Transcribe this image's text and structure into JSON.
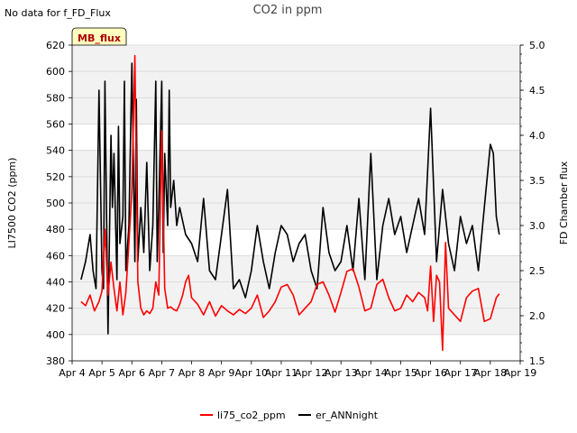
{
  "note": "No data for f_FD_Flux",
  "badge": "MB_flux",
  "chart_data": {
    "type": "line",
    "title": "CO2 in ppm",
    "ylabel": "LI7500 CO2 (ppm)",
    "y2label": "FD Chamber flux",
    "ylim": [
      380,
      620
    ],
    "y2lim": [
      1.5,
      5.0
    ],
    "yticks": [
      380,
      400,
      420,
      440,
      460,
      480,
      500,
      520,
      540,
      560,
      580,
      600,
      620
    ],
    "y2ticks": [
      "1.5",
      "2.0",
      "2.5",
      "3.0",
      "3.5",
      "4.0",
      "4.5",
      "5.0"
    ],
    "xlim": [
      4,
      19
    ],
    "xticks": [
      "Apr 4",
      "Apr 5",
      "Apr 6",
      "Apr 7",
      "Apr 8",
      "Apr 9",
      "Apr 10",
      "Apr 11",
      "Apr 12",
      "Apr 13",
      "Apr 14",
      "Apr 15",
      "Apr 16",
      "Apr 17",
      "Apr 18",
      "Apr 19"
    ],
    "colors": {
      "li75": "#ff0000",
      "er": "#000000"
    },
    "series": [
      {
        "name": "li75_co2_ppm",
        "axis": "left",
        "x": [
          4.3,
          4.45,
          4.6,
          4.75,
          4.9,
          5.0,
          5.1,
          5.2,
          5.3,
          5.4,
          5.5,
          5.6,
          5.7,
          5.8,
          5.9,
          6.0,
          6.1,
          6.2,
          6.3,
          6.4,
          6.5,
          6.6,
          6.7,
          6.8,
          6.9,
          7.0,
          7.1,
          7.2,
          7.3,
          7.4,
          7.5,
          7.6,
          7.7,
          7.8,
          7.9,
          8.0,
          8.2,
          8.4,
          8.6,
          8.8,
          9.0,
          9.2,
          9.4,
          9.6,
          9.8,
          10.0,
          10.2,
          10.4,
          10.6,
          10.8,
          11.0,
          11.2,
          11.4,
          11.6,
          11.8,
          12.0,
          12.2,
          12.4,
          12.6,
          12.8,
          13.0,
          13.2,
          13.4,
          13.6,
          13.8,
          14.0,
          14.2,
          14.4,
          14.6,
          14.8,
          15.0,
          15.2,
          15.4,
          15.6,
          15.8,
          15.9,
          16.0,
          16.1,
          16.2,
          16.3,
          16.4,
          16.5,
          16.6,
          16.8,
          17.0,
          17.2,
          17.4,
          17.6,
          17.8,
          18.0,
          18.2,
          18.3
        ],
        "values": [
          425,
          422,
          430,
          418,
          425,
          433,
          480,
          430,
          455,
          435,
          418,
          440,
          415,
          432,
          470,
          510,
          612,
          440,
          420,
          415,
          418,
          416,
          420,
          440,
          430,
          555,
          435,
          420,
          421,
          419,
          418,
          423,
          430,
          440,
          445,
          428,
          423,
          415,
          425,
          414,
          422,
          418,
          415,
          419,
          416,
          420,
          430,
          413,
          418,
          425,
          436,
          438,
          430,
          415,
          420,
          425,
          438,
          440,
          430,
          417,
          432,
          448,
          450,
          436,
          418,
          420,
          438,
          442,
          428,
          418,
          420,
          430,
          425,
          432,
          428,
          418,
          452,
          410,
          445,
          440,
          388,
          470,
          420,
          415,
          410,
          428,
          433,
          435,
          410,
          412,
          428,
          431
        ]
      },
      {
        "name": "er_ANNnight",
        "axis": "right",
        "x": [
          4.3,
          4.45,
          4.6,
          4.7,
          4.8,
          4.9,
          5.0,
          5.05,
          5.1,
          5.2,
          5.3,
          5.35,
          5.4,
          5.5,
          5.55,
          5.6,
          5.7,
          5.75,
          5.8,
          5.9,
          6.0,
          6.1,
          6.15,
          6.2,
          6.3,
          6.4,
          6.5,
          6.6,
          6.7,
          6.8,
          6.85,
          6.9,
          7.0,
          7.05,
          7.1,
          7.2,
          7.25,
          7.3,
          7.4,
          7.5,
          7.6,
          7.8,
          8.0,
          8.2,
          8.4,
          8.6,
          8.8,
          9.0,
          9.2,
          9.4,
          9.6,
          9.8,
          10.0,
          10.2,
          10.4,
          10.6,
          10.8,
          11.0,
          11.2,
          11.4,
          11.6,
          11.8,
          12.0,
          12.2,
          12.4,
          12.6,
          12.8,
          13.0,
          13.2,
          13.4,
          13.6,
          13.8,
          14.0,
          14.2,
          14.4,
          14.6,
          14.8,
          15.0,
          15.2,
          15.4,
          15.6,
          15.8,
          16.0,
          16.2,
          16.4,
          16.6,
          16.8,
          17.0,
          17.2,
          17.4,
          17.6,
          17.8,
          18.0,
          18.1,
          18.2,
          18.3
        ],
        "values": [
          2.4,
          2.6,
          2.9,
          2.5,
          2.3,
          4.5,
          2.5,
          2.3,
          4.6,
          1.8,
          4.0,
          3.2,
          3.8,
          2.4,
          4.1,
          2.8,
          3.1,
          4.6,
          2.5,
          3.0,
          4.8,
          2.6,
          4.4,
          2.6,
          3.2,
          2.7,
          3.7,
          2.5,
          3.0,
          4.6,
          2.6,
          3.2,
          4.6,
          2.7,
          3.8,
          3.0,
          4.5,
          3.2,
          3.5,
          3.0,
          3.2,
          2.9,
          2.8,
          2.6,
          3.3,
          2.5,
          2.4,
          2.9,
          3.4,
          2.3,
          2.4,
          2.2,
          2.5,
          3.0,
          2.6,
          2.3,
          2.7,
          3.0,
          2.9,
          2.6,
          2.8,
          2.9,
          2.5,
          2.3,
          3.2,
          2.7,
          2.5,
          2.6,
          3.0,
          2.5,
          3.3,
          2.4,
          3.8,
          2.4,
          3.0,
          3.3,
          2.9,
          3.1,
          2.7,
          3.0,
          3.3,
          2.9,
          4.3,
          2.6,
          3.4,
          2.8,
          2.5,
          3.1,
          2.8,
          3.0,
          2.5,
          3.2,
          3.9,
          3.8,
          3.1,
          2.9
        ]
      }
    ]
  }
}
